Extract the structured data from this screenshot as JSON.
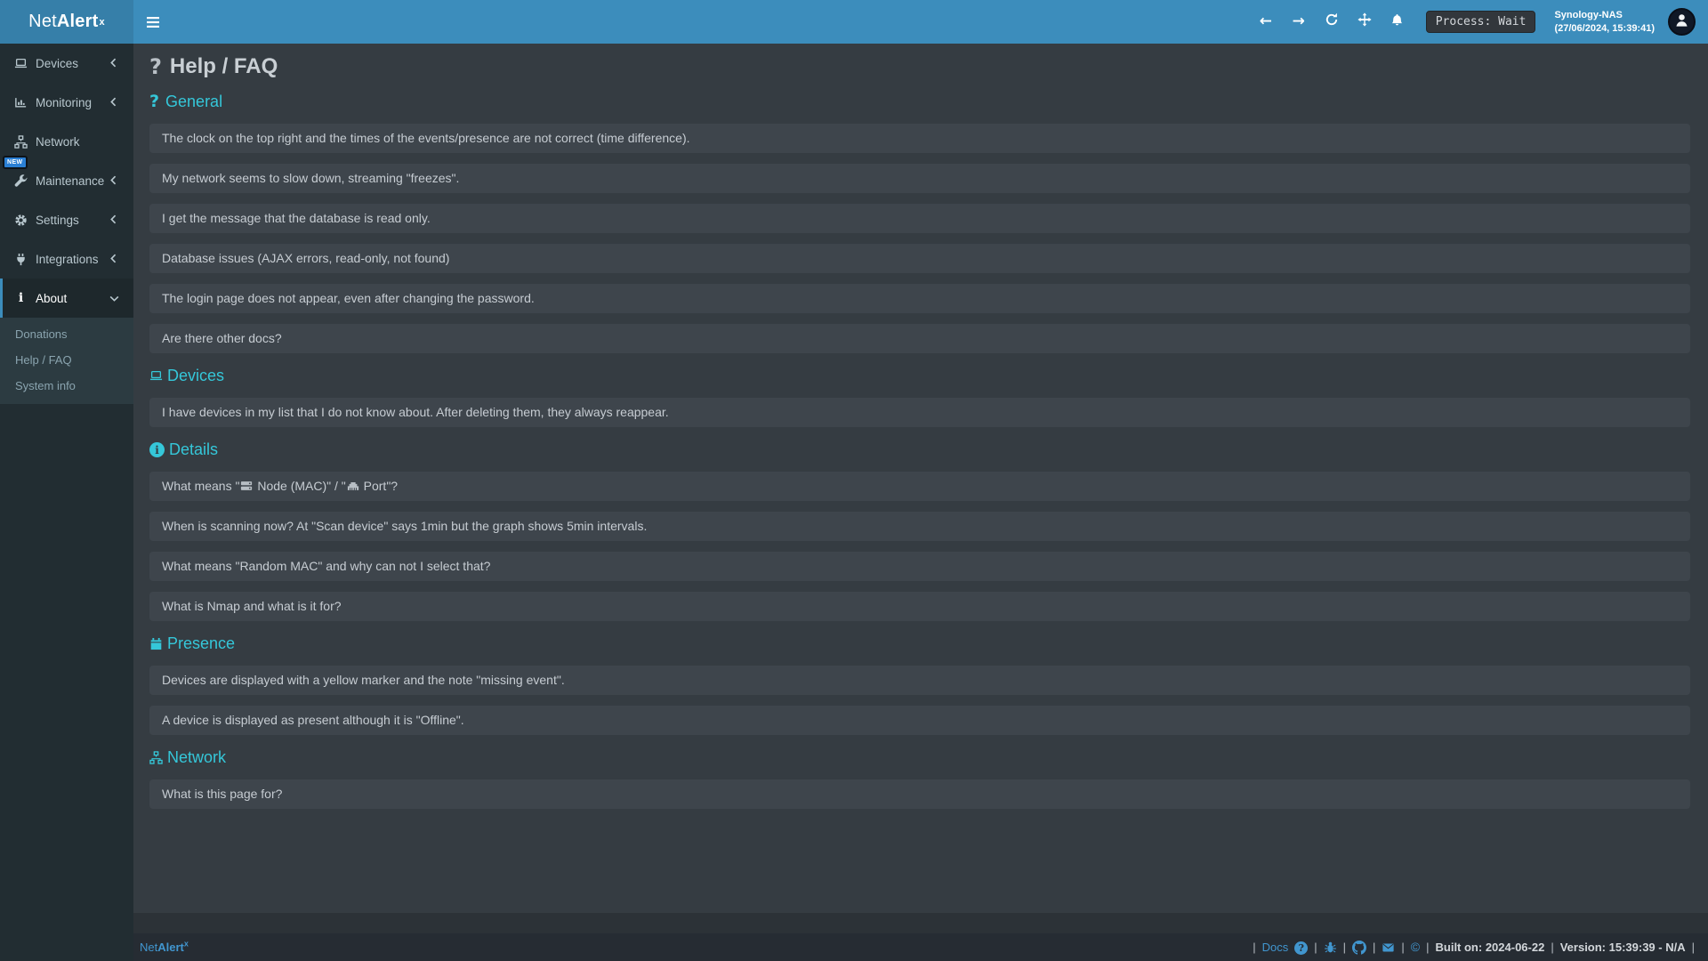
{
  "brand": {
    "name_light": "Net",
    "name_bold": "Alert",
    "sup": "x"
  },
  "colors": {
    "navbar": "#3c8dbc",
    "logo_bg": "#367fa9",
    "sidebar_bg": "#222d32",
    "section_bg": "#353c42",
    "box_bg": "#3e454c",
    "accent_cyan": "#35c7d9",
    "link_blue": "#4196cf",
    "active_border": "#3c8dbc"
  },
  "navbar": {
    "actions": [
      {
        "name": "arrow-left-icon",
        "label": "back"
      },
      {
        "name": "arrow-right-icon",
        "label": "forward"
      },
      {
        "name": "refresh-icon",
        "label": "refresh"
      },
      {
        "name": "arrows-move-icon",
        "label": "fullscreen"
      },
      {
        "name": "bell-icon",
        "label": "notifications"
      }
    ],
    "process_label": "Process: Wait",
    "host": "Synology-NAS",
    "timestamp": "(27/06/2024, 15:39:41)"
  },
  "sidebar": {
    "items": [
      {
        "label": "Devices",
        "icon": "laptop-icon",
        "chevron": "left"
      },
      {
        "label": "Monitoring",
        "icon": "monitoring-icon",
        "chevron": "left"
      },
      {
        "label": "Network",
        "icon": "sitemap-icon",
        "chevron": null
      },
      {
        "label": "Maintenance",
        "icon": "wrench-icon",
        "chevron": "left",
        "badge": "NEW"
      },
      {
        "label": "Settings",
        "icon": "gear-icon",
        "chevron": "left"
      },
      {
        "label": "Integrations",
        "icon": "plug-icon",
        "chevron": "left"
      },
      {
        "label": "About",
        "icon": "info-icon",
        "chevron": "down",
        "active": true,
        "submenu": [
          "Donations",
          "Help / FAQ",
          "System info"
        ]
      }
    ]
  },
  "page": {
    "title": "Help / FAQ"
  },
  "sections": [
    {
      "title": "General",
      "icon": "question-icon",
      "items": [
        "The clock on the top right and the times of the events/presence are not correct (time difference).",
        "My network seems to slow down, streaming \"freezes\".",
        "I get the message that the database is read only.",
        "Database issues (AJAX errors, read-only, not found)",
        "The login page does not appear, even after changing the password.",
        "Are there other docs?"
      ]
    },
    {
      "title": "Devices",
      "icon": "laptop-icon",
      "items": [
        "I have devices in my list that I do not know about. After deleting them, they always reappear."
      ]
    },
    {
      "title": "Details",
      "icon": "info-circle-icon",
      "items": [
        {
          "parts": [
            "What means \"",
            " Node (MAC)\" / \"",
            " Port\"?"
          ],
          "inline_icons": [
            "server-icon",
            "ethernet-icon"
          ]
        },
        "When is scanning now? At \"Scan device\" says 1min but the graph shows 5min intervals.",
        "What means \"Random MAC\" and why can not I select that?",
        "What is Nmap and what is it for?"
      ]
    },
    {
      "title": "Presence",
      "icon": "calendar-icon",
      "items": [
        "Devices are displayed with a yellow marker and the note \"missing event\".",
        "A device is displayed as present although it is \"Offline\"."
      ]
    },
    {
      "title": "Network",
      "icon": "sitemap-icon",
      "items": [
        "What is this page for?"
      ]
    }
  ],
  "footer": {
    "right_tokens": [
      {
        "t": "sep",
        "text": "|"
      },
      {
        "t": "link",
        "text": "Docs"
      },
      {
        "t": "icon",
        "name": "question-circle-icon"
      },
      {
        "t": "sep",
        "text": "|"
      },
      {
        "t": "icon",
        "name": "bug-icon"
      },
      {
        "t": "sep",
        "text": "|"
      },
      {
        "t": "icon",
        "name": "github-icon"
      },
      {
        "t": "sep",
        "text": "|"
      },
      {
        "t": "icon",
        "name": "envelope-icon"
      },
      {
        "t": "sep",
        "text": "|"
      },
      {
        "t": "icon",
        "name": "copyright-icon"
      },
      {
        "t": "sep",
        "text": "|"
      },
      {
        "t": "text",
        "text": "Built on: 2024-06-22"
      },
      {
        "t": "sep",
        "text": "|"
      },
      {
        "t": "text",
        "text": "Version: 15:39:39 - N/A"
      },
      {
        "t": "sep",
        "text": "|"
      }
    ]
  }
}
